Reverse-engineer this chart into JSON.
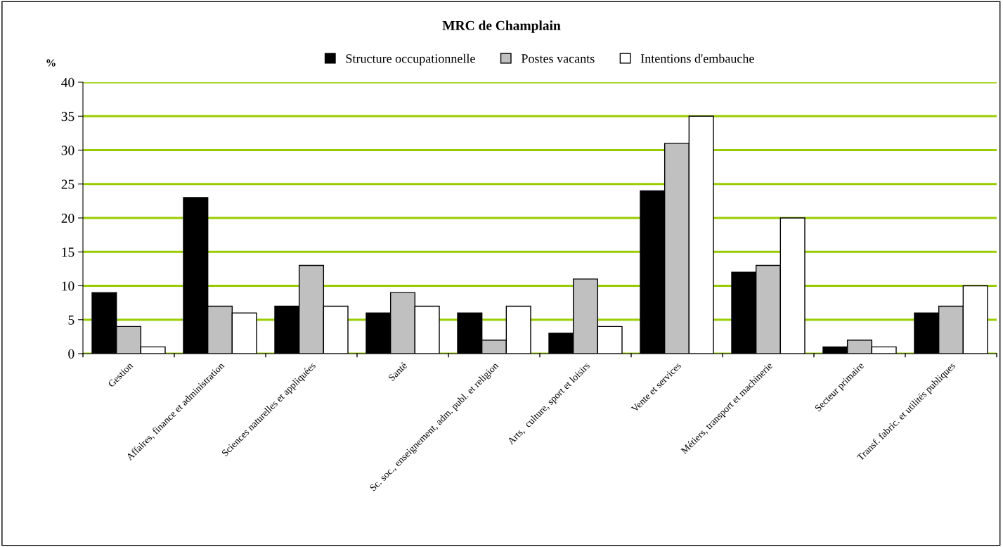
{
  "chart_data": {
    "type": "bar",
    "title": "MRC de Champlain",
    "ylabel": "%",
    "categories": [
      "Gestion",
      "Affaires, finance et administration",
      "Sciences naturelles et appliquées",
      "Santé",
      "Sc. soc., enseignement, adm. publ. et religion",
      "Arts,  culture, sport et loisirs",
      "Vente et services",
      "Métiers, transport et machinerie",
      "Secteur primaire",
      "Transf. fabric. et utilités publiques"
    ],
    "series": [
      {
        "name": "Structure occupationnelle",
        "color": "#000000",
        "values": [
          9,
          23,
          7,
          6,
          6,
          3,
          24,
          12,
          1,
          6
        ]
      },
      {
        "name": "Postes vacants",
        "color": "#c0c0c0",
        "values": [
          4,
          7,
          13,
          9,
          2,
          11,
          31,
          13,
          2,
          7
        ]
      },
      {
        "name": "Intentions d'embauche",
        "color": "#ffffff",
        "values": [
          1,
          6,
          7,
          7,
          7,
          4,
          35,
          20,
          1,
          10
        ]
      }
    ],
    "ylim": [
      0,
      40
    ],
    "yticks": [
      0,
      5,
      10,
      15,
      20,
      25,
      30,
      35,
      40
    ],
    "grid": "y",
    "legend": "top"
  }
}
